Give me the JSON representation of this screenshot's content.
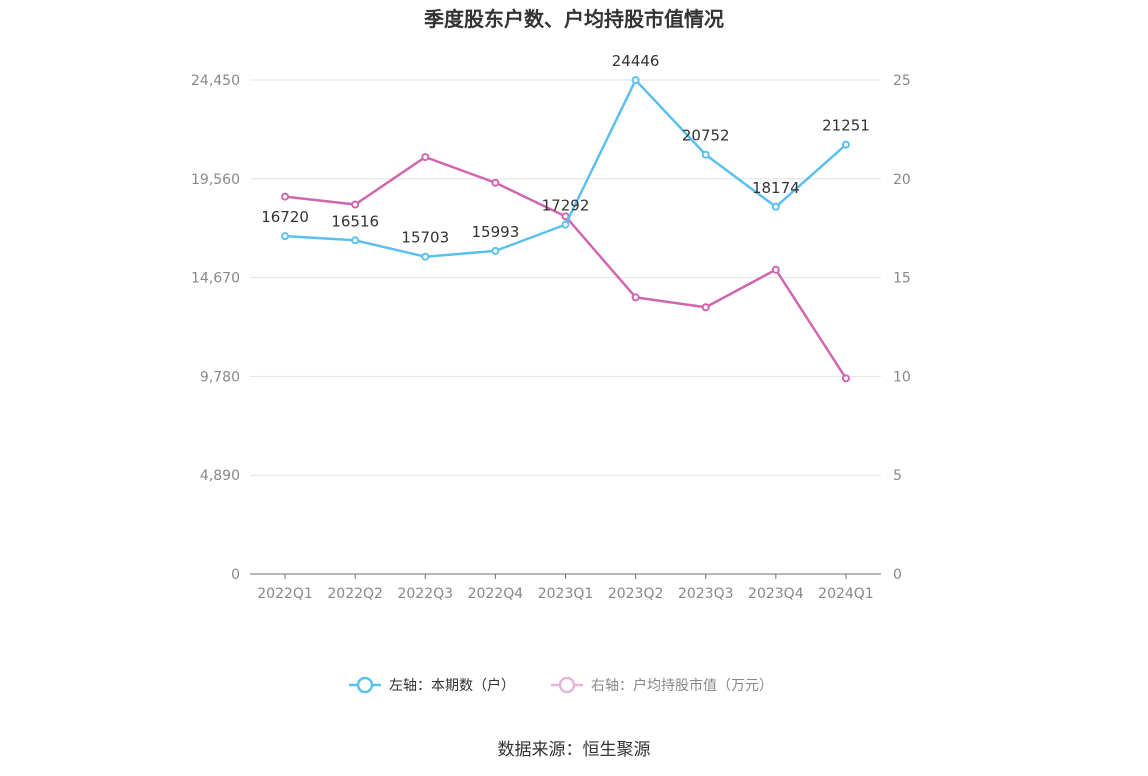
{
  "chart_data": {
    "type": "line",
    "title": "季度股东户数、户均持股市值情况",
    "categories": [
      "2022Q1",
      "2022Q2",
      "2022Q3",
      "2022Q4",
      "2023Q1",
      "2023Q2",
      "2023Q3",
      "2023Q4",
      "2024Q1"
    ],
    "left_axis": {
      "ylim": [
        0,
        24450
      ],
      "ticks": [
        "0",
        "4,890",
        "9,780",
        "14,670",
        "19,560",
        "24,450"
      ]
    },
    "right_axis": {
      "ylim": [
        0,
        25
      ],
      "ticks": [
        "0",
        "5",
        "10",
        "15",
        "20",
        "25"
      ]
    },
    "series": [
      {
        "name": "左轴：本期数（户）",
        "axis": "left",
        "color": "#5bc0f0",
        "values": [
          16720,
          16516,
          15703,
          15993,
          17292,
          24446,
          20752,
          18174,
          21251
        ],
        "labels": [
          "16720",
          "16516",
          "15703",
          "15993",
          "17292",
          "24446",
          "20752",
          "18174",
          "21251"
        ]
      },
      {
        "name": "右轴：户均持股市值（万元）",
        "axis": "right",
        "color": "#d066b0",
        "values": [
          19.1,
          18.7,
          21.1,
          19.8,
          18.1,
          14.0,
          13.5,
          15.4,
          9.9
        ]
      }
    ],
    "grid": true,
    "legend_position": "bottom"
  },
  "source_text": "数据来源：恒生聚源"
}
